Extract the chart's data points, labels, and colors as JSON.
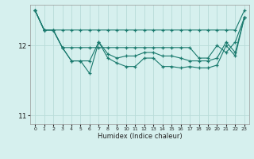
{
  "xlabel": "Humidex (Indice chaleur)",
  "bg_color": "#d6f0ee",
  "grid_color": "#b8dbd8",
  "line_color": "#1a7a6e",
  "xlim": [
    -0.5,
    23.5
  ],
  "ylim": [
    10.88,
    12.58
  ],
  "yticks": [
    11,
    12
  ],
  "xticks": [
    0,
    1,
    2,
    3,
    4,
    5,
    6,
    7,
    8,
    9,
    10,
    11,
    12,
    13,
    14,
    15,
    16,
    17,
    18,
    19,
    20,
    21,
    22,
    23
  ],
  "lines": [
    {
      "x": [
        0,
        1,
        2,
        3,
        4,
        5,
        6,
        7,
        8,
        9,
        10,
        11,
        12,
        13,
        14,
        15,
        16,
        17,
        18,
        19,
        20,
        21,
        22,
        23
      ],
      "y": [
        12.5,
        12.22,
        12.22,
        12.22,
        12.22,
        12.22,
        12.22,
        12.22,
        12.22,
        12.22,
        12.22,
        12.22,
        12.22,
        12.22,
        12.22,
        12.22,
        12.22,
        12.22,
        12.22,
        12.22,
        12.22,
        12.22,
        12.22,
        12.5
      ]
    },
    {
      "x": [
        0,
        1,
        2,
        3,
        4,
        5,
        6,
        7,
        8,
        9,
        10,
        11,
        12,
        13,
        14,
        15,
        16,
        17,
        18,
        19,
        20,
        21,
        22,
        23
      ],
      "y": [
        12.5,
        12.22,
        12.22,
        11.97,
        11.97,
        11.97,
        11.97,
        11.97,
        11.97,
        11.97,
        11.97,
        11.97,
        11.97,
        11.97,
        11.97,
        11.97,
        11.97,
        11.97,
        11.82,
        11.82,
        12.0,
        11.9,
        12.05,
        12.4
      ]
    },
    {
      "x": [
        0,
        1,
        2,
        3,
        4,
        5,
        6,
        7,
        8,
        9,
        10,
        11,
        12,
        13,
        14,
        15,
        16,
        17,
        18,
        19,
        20,
        21,
        22,
        23
      ],
      "y": [
        12.5,
        12.22,
        12.22,
        11.97,
        11.78,
        11.78,
        11.78,
        12.05,
        11.88,
        11.82,
        11.85,
        11.85,
        11.9,
        11.9,
        11.85,
        11.85,
        11.82,
        11.78,
        11.78,
        11.78,
        11.82,
        12.05,
        11.9,
        12.4
      ]
    },
    {
      "x": [
        0,
        1,
        2,
        3,
        4,
        5,
        6,
        7,
        8,
        9,
        10,
        11,
        12,
        13,
        14,
        15,
        16,
        17,
        18,
        19,
        20,
        21,
        22,
        23
      ],
      "y": [
        12.5,
        12.22,
        12.22,
        11.97,
        11.78,
        11.78,
        11.6,
        12.05,
        11.82,
        11.75,
        11.7,
        11.7,
        11.82,
        11.82,
        11.7,
        11.7,
        11.68,
        11.7,
        11.68,
        11.68,
        11.72,
        12.0,
        11.85,
        12.4
      ]
    }
  ]
}
